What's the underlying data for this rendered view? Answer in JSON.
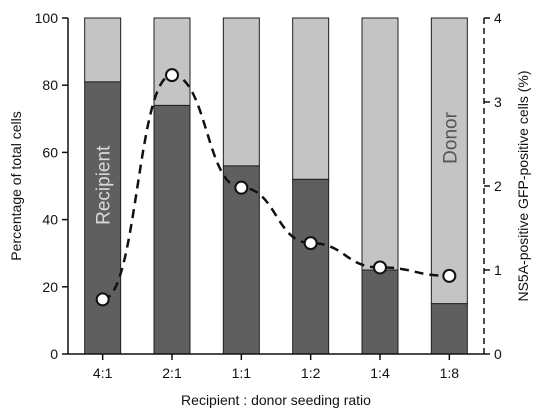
{
  "chart_data": {
    "type": "bar",
    "stacked": true,
    "categories": [
      "4:1",
      "2:1",
      "1:1",
      "1:2",
      "1:4",
      "1:8"
    ],
    "series": [
      {
        "name": "Recipient",
        "values": [
          81,
          74,
          56,
          52,
          25,
          15
        ],
        "color": "#5f5f5f"
      },
      {
        "name": "Donor",
        "values": [
          19,
          26,
          44,
          48,
          75,
          85
        ],
        "color": "#c4c4c4"
      }
    ],
    "line_series": {
      "values": [
        0.65,
        3.32,
        1.98,
        1.32,
        1.03,
        0.93
      ],
      "axis": "right",
      "style": "dashed",
      "marker": "open-circle"
    },
    "xlabel": "Recipient : donor seeding ratio",
    "ylabel": "Percentage of total cells",
    "y2label": "NS5A-positive GFP-positive cells (%)",
    "ylim": [
      0,
      100
    ],
    "y2lim": [
      0,
      4
    ],
    "yticks": [
      "0",
      "20",
      "40",
      "60",
      "80",
      "100"
    ],
    "y2ticks": [
      "0",
      "1",
      "2",
      "3",
      "4"
    ]
  }
}
